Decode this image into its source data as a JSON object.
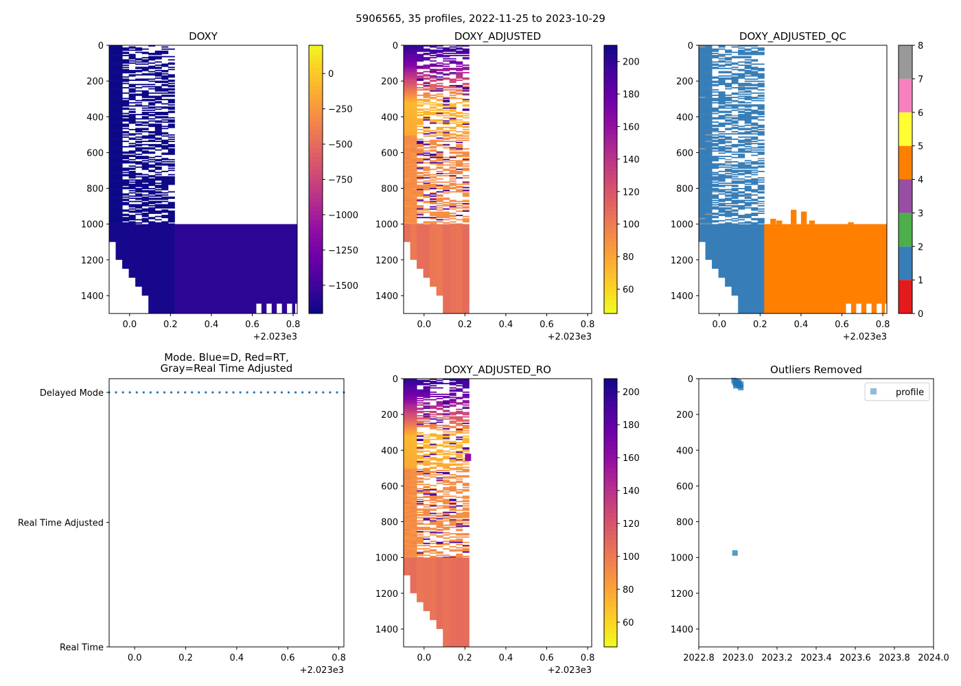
{
  "suptitle": "5906565, 35 profiles, 2022-11-25 to 2023-10-29",
  "colors": {
    "plasma": [
      "#0d0887",
      "#41049d",
      "#6a00a8",
      "#8f0da4",
      "#b12a90",
      "#cc4778",
      "#e16462",
      "#f2844b",
      "#fca636",
      "#fcce25",
      "#f0f921"
    ],
    "dm_dots": "#1f77b4",
    "outlier_marker": "#1f77b4",
    "qc_map": [
      "#e41a1c",
      "#377eb8",
      "#4daf4a",
      "#984ea3",
      "#ff7f00",
      "#ffff33",
      "#a65628",
      "#f781bf",
      "#999999"
    ]
  },
  "chart_data": [
    {
      "id": "doxy",
      "type": "heatmap",
      "title": "DOXY",
      "xlim": [
        -0.1,
        0.82
      ],
      "ylim": [
        1500,
        0
      ],
      "xticks": [
        "0.0",
        "0.2",
        "0.4",
        "0.6",
        "0.8"
      ],
      "xtick_values": [
        0.0,
        0.2,
        0.4,
        0.6,
        0.8
      ],
      "yticks": [
        "0",
        "200",
        "400",
        "600",
        "800",
        "1000",
        "1200",
        "1400"
      ],
      "ytick_values": [
        0,
        200,
        400,
        600,
        800,
        1000,
        1200,
        1400
      ],
      "x_offset_label": "+2.023e3",
      "colorbar": {
        "min": -1700,
        "max": 200,
        "reverse": true,
        "ticks": [
          "0",
          "−250",
          "−500",
          "−750",
          "−1000",
          "−1250",
          "−1500"
        ],
        "tick_values": [
          0,
          -250,
          -500,
          -750,
          -1000,
          -1250,
          -1500
        ]
      }
    },
    {
      "id": "doxy_adj",
      "type": "heatmap",
      "title": "DOXY_ADJUSTED",
      "xlim": [
        -0.1,
        0.82
      ],
      "ylim": [
        1500,
        0
      ],
      "xticks": [
        "0.0",
        "0.2",
        "0.4",
        "0.6",
        "0.8"
      ],
      "xtick_values": [
        0.0,
        0.2,
        0.4,
        0.6,
        0.8
      ],
      "yticks": [
        "0",
        "200",
        "400",
        "600",
        "800",
        "1000",
        "1200",
        "1400"
      ],
      "ytick_values": [
        0,
        200,
        400,
        600,
        800,
        1000,
        1200,
        1400
      ],
      "x_offset_label": "+2.023e3",
      "colorbar": {
        "min": 45,
        "max": 210,
        "reverse": false,
        "ticks": [
          "60",
          "80",
          "100",
          "120",
          "140",
          "160",
          "180",
          "200"
        ],
        "tick_values": [
          60,
          80,
          100,
          120,
          140,
          160,
          180,
          200
        ]
      }
    },
    {
      "id": "doxy_qc",
      "type": "heatmap",
      "title": "DOXY_ADJUSTED_QC",
      "xlim": [
        -0.1,
        0.82
      ],
      "ylim": [
        1500,
        0
      ],
      "xticks": [
        "0.0",
        "0.2",
        "0.4",
        "0.6",
        "0.8"
      ],
      "xtick_values": [
        0.0,
        0.2,
        0.4,
        0.6,
        0.8
      ],
      "yticks": [
        "0",
        "200",
        "400",
        "600",
        "800",
        "1000",
        "1200",
        "1400"
      ],
      "ytick_values": [
        0,
        200,
        400,
        600,
        800,
        1000,
        1200,
        1400
      ],
      "x_offset_label": "+2.023e3",
      "colorbar": {
        "min": 0,
        "max": 8,
        "categorical": true,
        "ticks": [
          "0",
          "1",
          "2",
          "3",
          "4",
          "5",
          "6",
          "7",
          "8"
        ],
        "tick_values": [
          0,
          1,
          2,
          3,
          4,
          5,
          6,
          7,
          8
        ]
      }
    },
    {
      "id": "mode",
      "type": "scatter",
      "title_lines": [
        "Mode. Blue=D, Red=RT,",
        "Gray=Real Time Adjusted"
      ],
      "xlim": [
        -0.1,
        0.82
      ],
      "xticks": [
        "0.0",
        "0.2",
        "0.4",
        "0.6",
        "0.8"
      ],
      "xtick_values": [
        0.0,
        0.2,
        0.4,
        0.6,
        0.8
      ],
      "x_offset_label": "+2.023e3",
      "ycategories": [
        "Delayed Mode",
        "Real Time Adjusted",
        "Real Time"
      ],
      "ycategory_values": [
        2,
        1,
        0
      ],
      "series": [
        {
          "name": "mode",
          "color": "#1f77b4",
          "y": 2,
          "x_start": -0.1,
          "x_end": 0.82,
          "count": 35
        }
      ]
    },
    {
      "id": "doxy_ro",
      "type": "heatmap",
      "title": "DOXY_ADJUSTED_RO",
      "xlim": [
        -0.1,
        0.82
      ],
      "ylim": [
        1500,
        0
      ],
      "xticks": [
        "0.0",
        "0.2",
        "0.4",
        "0.6",
        "0.8"
      ],
      "xtick_values": [
        0.0,
        0.2,
        0.4,
        0.6,
        0.8
      ],
      "yticks": [
        "0",
        "200",
        "400",
        "600",
        "800",
        "1000",
        "1200",
        "1400"
      ],
      "ytick_values": [
        0,
        200,
        400,
        600,
        800,
        1000,
        1200,
        1400
      ],
      "x_offset_label": "+2.023e3",
      "colorbar": {
        "min": 45,
        "max": 208,
        "reverse": false,
        "ticks": [
          "60",
          "80",
          "100",
          "120",
          "140",
          "160",
          "180",
          "200"
        ],
        "tick_values": [
          60,
          80,
          100,
          120,
          140,
          160,
          180,
          200
        ]
      }
    },
    {
      "id": "outliers",
      "type": "scatter",
      "title": "Outliers Removed",
      "xlim": [
        2022.8,
        2024.0
      ],
      "ylim": [
        1500,
        0
      ],
      "xticks": [
        "2022.8",
        "2023.0",
        "2023.2",
        "2023.4",
        "2023.6",
        "2023.8",
        "2024.0"
      ],
      "xtick_values": [
        2022.8,
        2023.0,
        2023.2,
        2023.4,
        2023.6,
        2023.8,
        2024.0
      ],
      "yticks": [
        "0",
        "200",
        "400",
        "600",
        "800",
        "1000",
        "1200",
        "1400"
      ],
      "ytick_values": [
        0,
        200,
        400,
        600,
        800,
        1000,
        1200,
        1400
      ],
      "legend": {
        "label": "profile",
        "placement": "top-right"
      },
      "series": [
        {
          "name": "profile",
          "points": [
            [
              2022.98,
              10
            ],
            [
              2022.985,
              20
            ],
            [
              2022.99,
              30
            ],
            [
              2022.995,
              15
            ],
            [
              2023.0,
              25
            ],
            [
              2023.005,
              35
            ],
            [
              2023.01,
              40
            ],
            [
              2023.015,
              50
            ],
            [
              2023.005,
              20
            ],
            [
              2022.99,
              40
            ],
            [
              2023.015,
              30
            ],
            [
              2022.985,
              975
            ]
          ]
        }
      ]
    }
  ]
}
